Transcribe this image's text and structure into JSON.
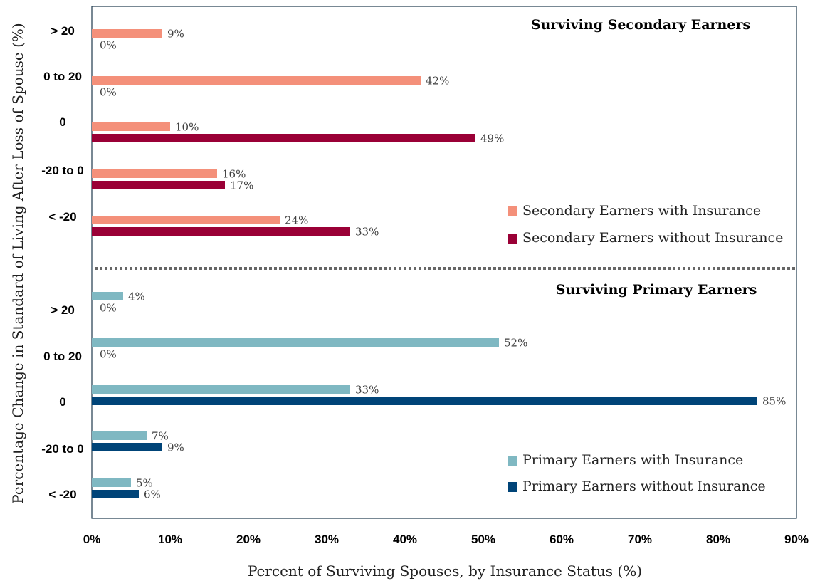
{
  "chart_data": {
    "type": "bar",
    "orientation": "horizontal",
    "xlabel": "Percent of Surviving Spouses, by Insurance Status (%)",
    "ylabel": "Percentage Change in Standard of Living After Loss of Spouse (%)",
    "xlim": [
      0,
      90
    ],
    "xticks": [
      "0%",
      "10%",
      "20%",
      "30%",
      "40%",
      "50%",
      "60%",
      "70%",
      "80%",
      "90%"
    ],
    "categories": [
      "> 20",
      "0 to 20",
      "0",
      "-20 to 0",
      "< -20"
    ],
    "panels": [
      {
        "title": "Surviving Secondary Earners",
        "series": [
          {
            "name": "Secondary Earners with Insurance",
            "color": "#F4907A",
            "values": [
              9,
              42,
              10,
              16,
              24
            ],
            "labels": [
              "9%",
              "42%",
              "10%",
              "16%",
              "24%"
            ]
          },
          {
            "name": "Secondary Earners without Insurance",
            "color": "#9A0036",
            "values": [
              0,
              0,
              49,
              17,
              33
            ],
            "labels": [
              "0%",
              "0%",
              "49%",
              "17%",
              "33%"
            ]
          }
        ]
      },
      {
        "title": "Surviving Primary Earners",
        "series": [
          {
            "name": "Primary Earners with Insurance",
            "color": "#7FB8C2",
            "values": [
              4,
              52,
              33,
              7,
              5
            ],
            "labels": [
              "4%",
              "52%",
              "33%",
              "7%",
              "5%"
            ]
          },
          {
            "name": "Primary Earners without Insurance",
            "color": "#004478",
            "values": [
              0,
              0,
              85,
              9,
              6
            ],
            "labels": [
              "0%",
              "0%",
              "85%",
              "9%",
              "6%"
            ]
          }
        ]
      }
    ],
    "legend_position": "right",
    "grid": false
  }
}
